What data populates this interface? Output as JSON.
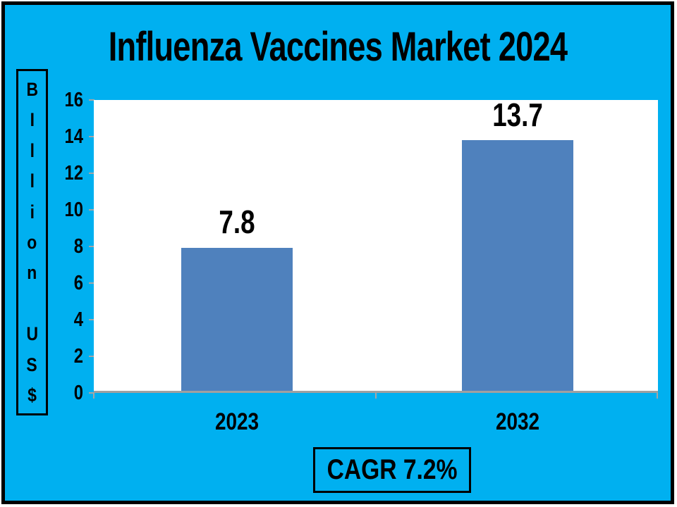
{
  "slide": {
    "title": "Influenza Vaccines Market 2024"
  },
  "y_axis": {
    "unit_label": "Billion US$",
    "unit_chars": [
      "B",
      "I",
      "l",
      "l",
      "i",
      "o",
      "n",
      "",
      "U",
      "S",
      "$"
    ],
    "ticks": [
      "16",
      "14",
      "12",
      "10",
      "8",
      "6",
      "4",
      "2",
      "0"
    ]
  },
  "x_axis": {
    "labels": [
      "2023",
      "2032"
    ]
  },
  "footer": {
    "cagr_label": "CAGR 7.2%"
  },
  "colors": {
    "background": "#00B0F0",
    "bar": "#4F81BD",
    "axis_line": "#A0A0A0",
    "tick_mark": "#A6A6A6",
    "plot_background": "#FFFFFF",
    "border": "#000000",
    "text": "#000000"
  },
  "chart_data": {
    "type": "bar",
    "title": "Influenza Vaccines Market 2024",
    "categories": [
      "2023",
      "2032"
    ],
    "values": [
      7.8,
      13.7
    ],
    "data_labels": [
      "7.8",
      "13.7"
    ],
    "xlabel": "",
    "ylabel": "Billion US$",
    "ylim": [
      0,
      16
    ],
    "ytick_step": 2,
    "grid": false,
    "legend": false,
    "annotation": "CAGR 7.2%",
    "bar_color": "#4F81BD"
  }
}
